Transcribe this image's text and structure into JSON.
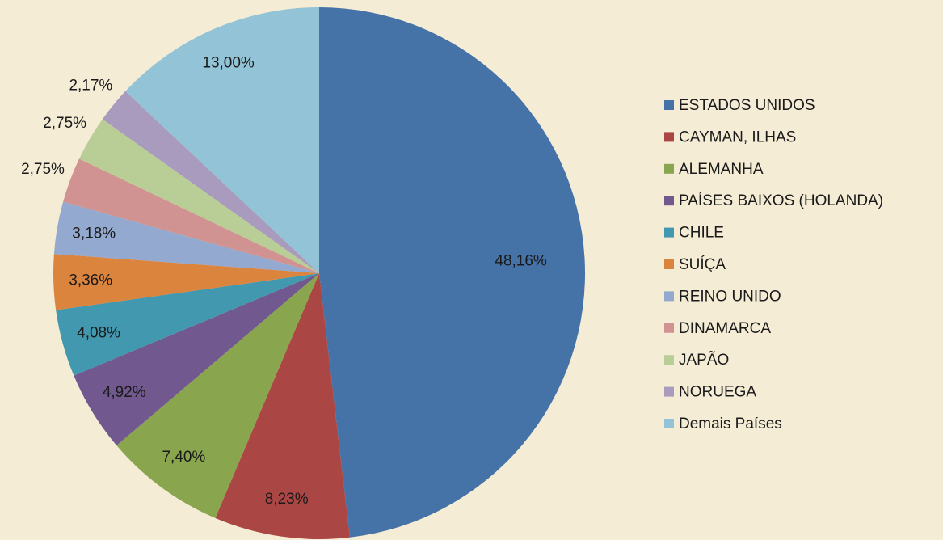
{
  "chart_data": {
    "type": "pie",
    "categories": [
      "ESTADOS UNIDOS",
      "CAYMAN, ILHAS",
      "ALEMANHA",
      "PAÍSES BAIXOS (HOLANDA)",
      "CHILE",
      "SUÍÇA",
      "REINO UNIDO",
      "DINAMARCA",
      "JAPÃO",
      "NORUEGA",
      "Demais Países"
    ],
    "values": [
      48.16,
      8.23,
      7.4,
      4.92,
      4.08,
      3.36,
      3.18,
      2.75,
      2.75,
      2.17,
      13.0
    ],
    "value_labels": [
      "48,16%",
      "8,23%",
      "7,40%",
      "4,92%",
      "4,08%",
      "3,36%",
      "3,18%",
      "2,75%",
      "2,75%",
      "2,17%",
      "13,00%"
    ],
    "colors": [
      "#4572a7",
      "#aa4643",
      "#89a54e",
      "#71588f",
      "#4198af",
      "#db843d",
      "#93a9cf",
      "#d19392",
      "#b9cd96",
      "#a99bbd",
      "#92c3d6"
    ],
    "legend": "right"
  }
}
